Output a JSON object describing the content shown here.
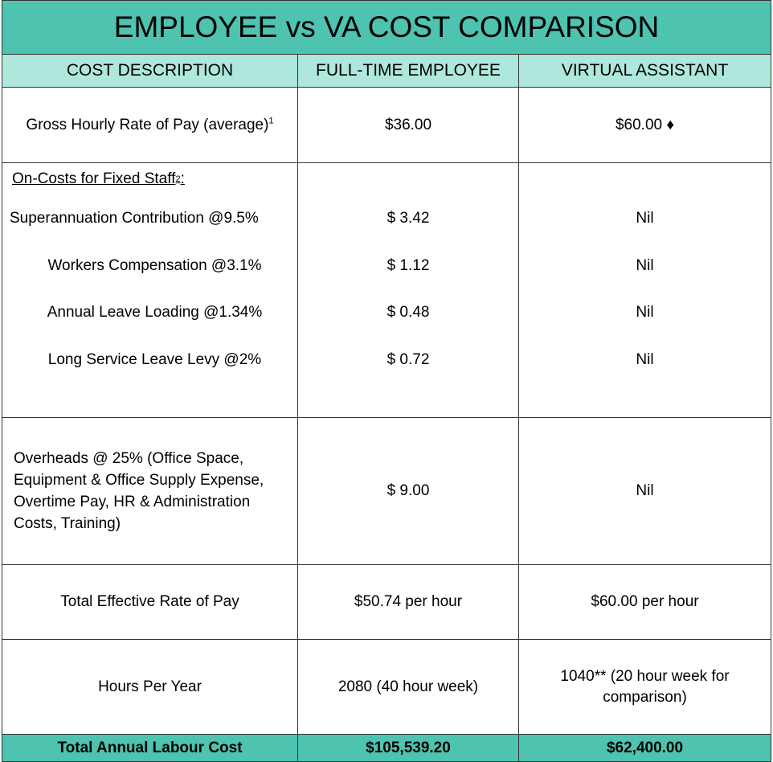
{
  "title": "EMPLOYEE vs VA COST COMPARISON",
  "headers": {
    "description": "COST DESCRIPTION",
    "employee": "FULL-TIME EMPLOYEE",
    "va": "VIRTUAL ASSISTANT"
  },
  "gross": {
    "label": "Gross Hourly Rate of Pay (average)",
    "footnote": "1",
    "employee": "$36.00",
    "va": "$60.00 ♦"
  },
  "oncosts": {
    "label": "On-Costs for Fixed Staff",
    "footnote": "2",
    "suffix": ":",
    "items": [
      {
        "label": "Superannuation Contribution @9.5%",
        "employee": "$ 3.42",
        "va": "Nil"
      },
      {
        "label": "Workers Compensation @3.1%",
        "employee": "$ 1.12",
        "va": "Nil"
      },
      {
        "label": "Annual Leave Loading @1.34%",
        "employee": "$ 0.48",
        "va": "Nil"
      },
      {
        "label": "Long Service Leave Levy @2%",
        "employee": "$ 0.72",
        "va": "Nil"
      }
    ]
  },
  "overheads": {
    "label": "Overheads @ 25% (Office Space, Equipment & Office Supply Expense, Overtime Pay, HR & Administration Costs, Training)",
    "employee": "$ 9.00",
    "va": "Nil"
  },
  "effective": {
    "label": "Total Effective Rate of Pay",
    "employee": "$50.74 per hour",
    "va": "$60.00 per hour"
  },
  "hours": {
    "label": "Hours Per Year",
    "employee": "2080 (40 hour week)",
    "va": "1040** (20 hour week for comparison)"
  },
  "total": {
    "label": "Total Annual Labour Cost",
    "employee": "$105,539.20",
    "va": "$62,400.00"
  }
}
